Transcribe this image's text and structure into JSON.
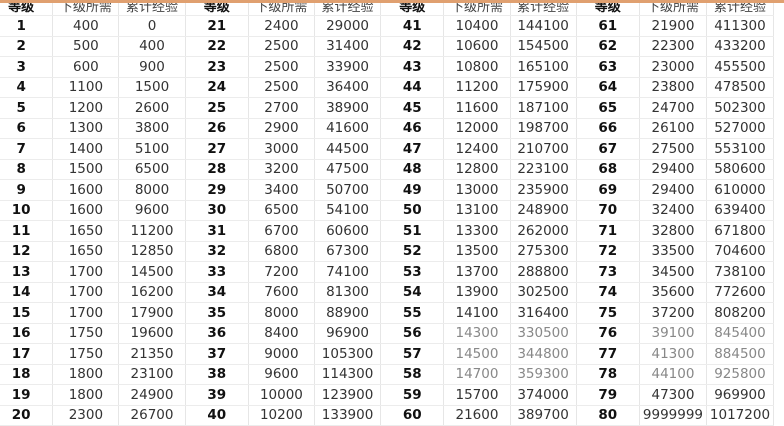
{
  "headers": {
    "level": "等级",
    "next_required": "下级所需",
    "cumulative_exp": "累计经验"
  },
  "colors": {
    "header_stripe": "#e0a070",
    "grid": "#e6e6e6"
  },
  "groups": [
    {
      "rows": [
        {
          "level": "1",
          "next": "400",
          "total": "0"
        },
        {
          "level": "2",
          "next": "500",
          "total": "400"
        },
        {
          "level": "3",
          "next": "600",
          "total": "900"
        },
        {
          "level": "4",
          "next": "1100",
          "total": "1500"
        },
        {
          "level": "5",
          "next": "1200",
          "total": "2600"
        },
        {
          "level": "6",
          "next": "1300",
          "total": "3800"
        },
        {
          "level": "7",
          "next": "1400",
          "total": "5100"
        },
        {
          "level": "8",
          "next": "1500",
          "total": "6500"
        },
        {
          "level": "9",
          "next": "1600",
          "total": "8000"
        },
        {
          "level": "10",
          "next": "1600",
          "total": "9600"
        },
        {
          "level": "11",
          "next": "1650",
          "total": "11200"
        },
        {
          "level": "12",
          "next": "1650",
          "total": "12850"
        },
        {
          "level": "13",
          "next": "1700",
          "total": "14500"
        },
        {
          "level": "14",
          "next": "1700",
          "total": "16200"
        },
        {
          "level": "15",
          "next": "1700",
          "total": "17900"
        },
        {
          "level": "16",
          "next": "1750",
          "total": "19600"
        },
        {
          "level": "17",
          "next": "1750",
          "total": "21350"
        },
        {
          "level": "18",
          "next": "1800",
          "total": "23100"
        },
        {
          "level": "19",
          "next": "1800",
          "total": "24900"
        },
        {
          "level": "20",
          "next": "2300",
          "total": "26700"
        }
      ]
    },
    {
      "rows": [
        {
          "level": "21",
          "next": "2400",
          "total": "29000"
        },
        {
          "level": "22",
          "next": "2500",
          "total": "31400"
        },
        {
          "level": "23",
          "next": "2500",
          "total": "33900"
        },
        {
          "level": "24",
          "next": "2500",
          "total": "36400"
        },
        {
          "level": "25",
          "next": "2700",
          "total": "38900"
        },
        {
          "level": "26",
          "next": "2900",
          "total": "41600"
        },
        {
          "level": "27",
          "next": "3000",
          "total": "44500"
        },
        {
          "level": "28",
          "next": "3200",
          "total": "47500"
        },
        {
          "level": "29",
          "next": "3400",
          "total": "50700"
        },
        {
          "level": "30",
          "next": "6500",
          "total": "54100"
        },
        {
          "level": "31",
          "next": "6700",
          "total": "60600"
        },
        {
          "level": "32",
          "next": "6800",
          "total": "67300"
        },
        {
          "level": "33",
          "next": "7200",
          "total": "74100"
        },
        {
          "level": "34",
          "next": "7600",
          "total": "81300"
        },
        {
          "level": "35",
          "next": "8000",
          "total": "88900"
        },
        {
          "level": "36",
          "next": "8400",
          "total": "96900"
        },
        {
          "level": "37",
          "next": "9000",
          "total": "105300"
        },
        {
          "level": "38",
          "next": "9600",
          "total": "114300"
        },
        {
          "level": "39",
          "next": "10000",
          "total": "123900"
        },
        {
          "level": "40",
          "next": "10200",
          "total": "133900"
        }
      ]
    },
    {
      "rows": [
        {
          "level": "41",
          "next": "10400",
          "total": "144100"
        },
        {
          "level": "42",
          "next": "10600",
          "total": "154500"
        },
        {
          "level": "43",
          "next": "10800",
          "total": "165100"
        },
        {
          "level": "44",
          "next": "11200",
          "total": "175900"
        },
        {
          "level": "45",
          "next": "11600",
          "total": "187100"
        },
        {
          "level": "46",
          "next": "12000",
          "total": "198700"
        },
        {
          "level": "47",
          "next": "12400",
          "total": "210700"
        },
        {
          "level": "48",
          "next": "12800",
          "total": "223100"
        },
        {
          "level": "49",
          "next": "13000",
          "total": "235900"
        },
        {
          "level": "50",
          "next": "13100",
          "total": "248900"
        },
        {
          "level": "51",
          "next": "13300",
          "total": "262000"
        },
        {
          "level": "52",
          "next": "13500",
          "total": "275300"
        },
        {
          "level": "53",
          "next": "13700",
          "total": "288800"
        },
        {
          "level": "54",
          "next": "13900",
          "total": "302500"
        },
        {
          "level": "55",
          "next": "14100",
          "total": "316400"
        },
        {
          "level": "56",
          "next": "14300",
          "total": "330500"
        },
        {
          "level": "57",
          "next": "14500",
          "total": "344800"
        },
        {
          "level": "58",
          "next": "14700",
          "total": "359300"
        },
        {
          "level": "59",
          "next": "15700",
          "total": "374000"
        },
        {
          "level": "60",
          "next": "21600",
          "total": "389700"
        }
      ]
    },
    {
      "rows": [
        {
          "level": "61",
          "next": "21900",
          "total": "411300"
        },
        {
          "level": "62",
          "next": "22300",
          "total": "433200"
        },
        {
          "level": "63",
          "next": "23000",
          "total": "455500"
        },
        {
          "level": "64",
          "next": "23800",
          "total": "478500"
        },
        {
          "level": "65",
          "next": "24700",
          "total": "502300"
        },
        {
          "level": "66",
          "next": "26100",
          "total": "527000"
        },
        {
          "level": "67",
          "next": "27500",
          "total": "553100"
        },
        {
          "level": "68",
          "next": "29400",
          "total": "580600"
        },
        {
          "level": "69",
          "next": "29400",
          "total": "610000"
        },
        {
          "level": "70",
          "next": "32400",
          "total": "639400"
        },
        {
          "level": "71",
          "next": "32800",
          "total": "671800"
        },
        {
          "level": "72",
          "next": "33500",
          "total": "704600"
        },
        {
          "level": "73",
          "next": "34500",
          "total": "738100"
        },
        {
          "level": "74",
          "next": "35600",
          "total": "772600"
        },
        {
          "level": "75",
          "next": "37200",
          "total": "808200"
        },
        {
          "level": "76",
          "next": "39100",
          "total": "845400"
        },
        {
          "level": "77",
          "next": "41300",
          "total": "884500"
        },
        {
          "level": "78",
          "next": "44100",
          "total": "925800"
        },
        {
          "level": "79",
          "next": "47300",
          "total": "969900"
        },
        {
          "level": "80",
          "next": "9999999",
          "total": "1017200"
        }
      ]
    }
  ]
}
